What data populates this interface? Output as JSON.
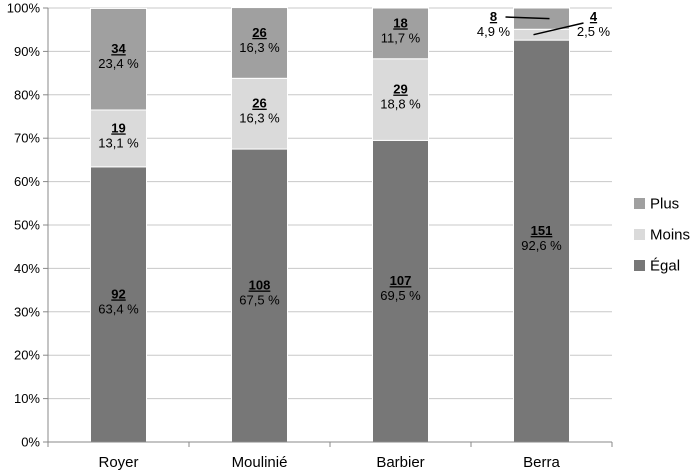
{
  "chart_data": {
    "type": "bar",
    "stacked": true,
    "normalized": true,
    "categories": [
      "Royer",
      "Moulinié",
      "Barbier",
      "Berra"
    ],
    "series": [
      {
        "name": "Égal",
        "color": "#777777",
        "counts": [
          92,
          108,
          107,
          151
        ],
        "percent_labels": [
          "63,4 %",
          "67,5 %",
          "69,5 %",
          "92,6 %"
        ],
        "values": [
          63.4,
          67.5,
          69.5,
          92.6
        ]
      },
      {
        "name": "Moins",
        "color": "#dadada",
        "counts": [
          19,
          26,
          29,
          4
        ],
        "percent_labels": [
          "13,1 %",
          "16,3 %",
          "18,8 %",
          "2,5 %"
        ],
        "values": [
          13.1,
          16.3,
          18.8,
          2.5
        ]
      },
      {
        "name": "Plus",
        "color": "#a0a0a0",
        "counts": [
          34,
          26,
          18,
          8
        ],
        "percent_labels": [
          "23,4 %",
          "16,3 %",
          "11,7 %",
          "4,9 %"
        ],
        "values": [
          23.4,
          16.3,
          11.7,
          4.9
        ]
      }
    ],
    "ylim": [
      0,
      100
    ],
    "yticks": [
      "0%",
      "10%",
      "20%",
      "30%",
      "40%",
      "50%",
      "60%",
      "70%",
      "80%",
      "90%",
      "100%"
    ],
    "grid": true,
    "legend_position": "right",
    "legend_order": [
      "Plus",
      "Moins",
      "Égal"
    ],
    "xlabel": "",
    "ylabel": "",
    "title": ""
  }
}
